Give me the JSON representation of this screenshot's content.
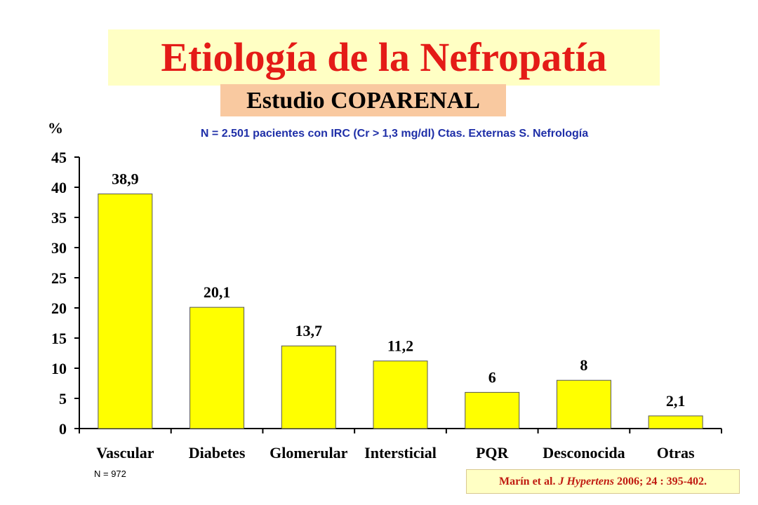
{
  "title": "Etiología de la Nefropatía",
  "subtitle": "Estudio COPARENAL",
  "caption": "N = 2.501 pacientes con IRC (Cr > 1,3 mg/dl) Ctas. Externas S. Nefrología",
  "sample_note": "N = 972",
  "reference": {
    "authors": "Marín et al.",
    "journal": "J Hypertens",
    "details": "2006; 24 : 395-402."
  },
  "colors": {
    "bar_fill": "#ffff00",
    "title": "#e41b17",
    "caption": "#1f2fa8"
  },
  "chart_data": {
    "type": "bar",
    "title": "",
    "ylabel": "%",
    "xlabel": "",
    "ylim": [
      0,
      45
    ],
    "yticks": [
      0,
      5,
      10,
      15,
      20,
      25,
      30,
      35,
      40,
      45
    ],
    "categories": [
      "Vascular",
      "Diabetes",
      "Glomerular",
      "Intersticial",
      "PQR",
      "Desconocida",
      "Otras"
    ],
    "values": [
      38.9,
      20.1,
      13.7,
      11.2,
      6,
      8,
      2.1
    ],
    "value_labels": [
      "38,9",
      "20,1",
      "13,7",
      "11,2",
      "6",
      "8",
      "2,1"
    ],
    "grid": false,
    "legend": "none"
  }
}
